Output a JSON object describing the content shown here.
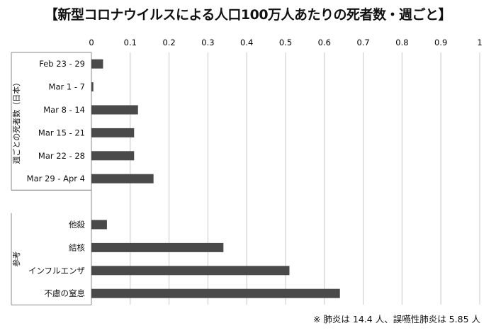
{
  "title": "【新型コロナウイルスによる人口100万人あたりの死者数・週ごと】",
  "note": "※ 肺炎は 14.4 人、誤嚥性肺炎は 5.85 人",
  "chart_data": {
    "type": "bar",
    "orientation": "horizontal",
    "title": "【新型コロナウイルスによる人口100万人あたりの死者数・週ごと】",
    "xlim": [
      0,
      1
    ],
    "x_ticks": [
      "0",
      "0.1",
      "0.2",
      "0.3",
      "0.4",
      "0.5",
      "0.6",
      "0.7",
      "0.8",
      "0.9",
      "1"
    ],
    "x_axis_position": "top",
    "grid": true,
    "bar_color": "#4a4a4a",
    "groups": [
      {
        "label": "週ごとの死者数（日本）",
        "categories": [
          "Feb 23 - 29",
          "Mar 1 - 7",
          "Mar 8 - 14",
          "Mar 15 - 21",
          "Mar 22 - 28",
          "Mar 29 - Apr 4"
        ],
        "values": [
          0.03,
          0.005,
          0.12,
          0.11,
          0.11,
          0.16
        ]
      },
      {
        "label": "参考",
        "categories": [
          "他殺",
          "結核",
          "インフルエンザ",
          "不慮の窒息"
        ],
        "values": [
          0.04,
          0.34,
          0.51,
          0.64
        ]
      }
    ]
  }
}
